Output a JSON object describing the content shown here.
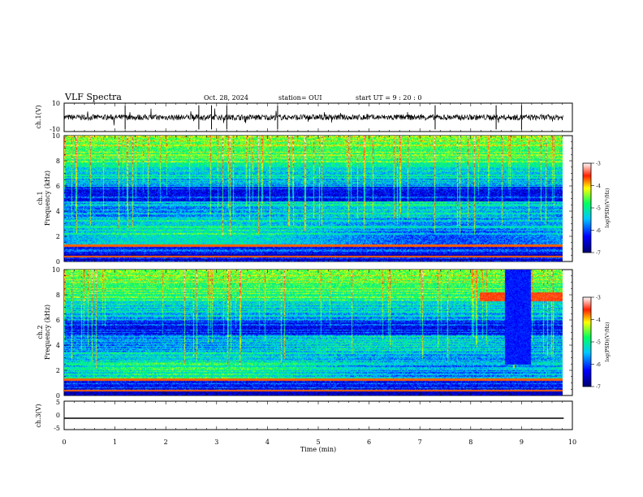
{
  "header": {
    "title": "VLF Spectra",
    "date": "Oct. 28, 2024",
    "station": "station= OUI",
    "start": "start  UT  =   9  : 20 : 0"
  },
  "chart_data": [
    {
      "type": "line",
      "name": "ch1-waveform",
      "ylabel": "ch.1(V)",
      "ylim": [
        -10,
        10
      ],
      "y_ticks": [
        "10",
        "-10"
      ],
      "baseline": 0,
      "x_range": [
        0,
        9.83
      ],
      "spikes_at_min": [
        1.2,
        2.65,
        2.9,
        3.2,
        4.2,
        7.3,
        8.5,
        9.0
      ]
    },
    {
      "type": "heatmap",
      "name": "ch1-spectrogram",
      "ylabel": "ch.1\nFrequency (kHz)",
      "ylabel_line1": "ch.1",
      "ylabel_line2": "Frequency (kHz)",
      "ylim": [
        0,
        10
      ],
      "y_ticks": [
        "0",
        "2",
        "4",
        "6",
        "8",
        "10"
      ],
      "x_range": [
        0,
        9.83
      ],
      "colorbar": {
        "label": "log(PSD)(V²/Hz)",
        "range": [
          -7,
          -3
        ],
        "ticks": [
          "-3",
          "-4",
          "-5",
          "-6",
          "-7"
        ],
        "colors": [
          "#000080",
          "#0000ff",
          "#00bfff",
          "#00ff80",
          "#ffff00",
          "#ff4000",
          "#ffffff"
        ]
      }
    },
    {
      "type": "heatmap",
      "name": "ch2-spectrogram",
      "ylabel_line1": "ch.2",
      "ylabel_line2": "Frequency (kHz)",
      "ylim": [
        0,
        10
      ],
      "y_ticks": [
        "0",
        "2",
        "4",
        "6",
        "8",
        "10"
      ],
      "x_range": [
        0,
        9.83
      ],
      "band_7_5_to_8_2_khz_active_min": [
        [
          8.2,
          8.7
        ],
        [
          9.2,
          9.83
        ]
      ],
      "colorbar": {
        "label": "log(PSD)(V²/Hz)",
        "range": [
          -7,
          -3
        ],
        "ticks": [
          "-3",
          "-4",
          "-5",
          "-6",
          "-7"
        ]
      }
    },
    {
      "type": "line",
      "name": "ch3-waveform",
      "ylabel": "ch.3(V)",
      "ylim": [
        -5,
        5
      ],
      "y_ticks": [
        "5",
        "0",
        "-5"
      ],
      "value": -1,
      "x_range": [
        0,
        9.83
      ]
    }
  ],
  "x_axis": {
    "label": "Time  (min)",
    "ticks": [
      "0",
      "1",
      "2",
      "3",
      "4",
      "5",
      "6",
      "7",
      "8",
      "9",
      "10"
    ],
    "range": [
      0,
      10
    ]
  }
}
